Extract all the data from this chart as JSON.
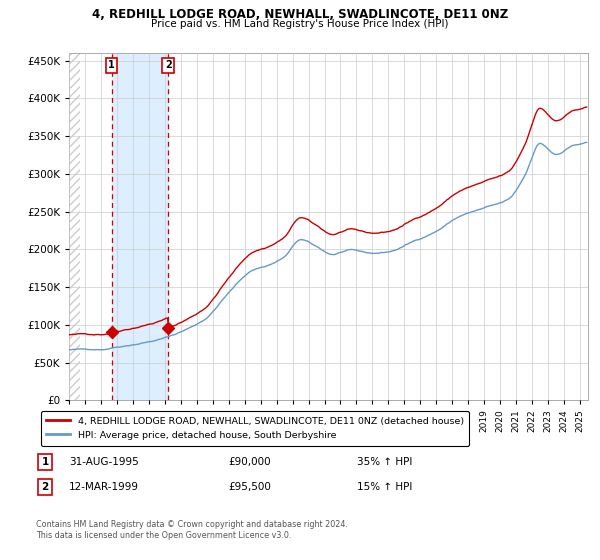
{
  "title_line1": "4, REDHILL LODGE ROAD, NEWHALL, SWADLINCOTE, DE11 0NZ",
  "title_line2": "Price paid vs. HM Land Registry's House Price Index (HPI)",
  "sale1_date_num": 1995.667,
  "sale1_price": 90000,
  "sale1_label": "1",
  "sale1_hpi": "35% ↑ HPI",
  "sale1_date_str": "31-AUG-1995",
  "sale2_date_num": 1999.208,
  "sale2_price": 95500,
  "sale2_label": "2",
  "sale2_hpi": "15% ↑ HPI",
  "sale2_date_str": "12-MAR-1999",
  "legend_line1": "4, REDHILL LODGE ROAD, NEWHALL, SWADLINCOTE, DE11 0NZ (detached house)",
  "legend_line2": "HPI: Average price, detached house, South Derbyshire",
  "footer": "Contains HM Land Registry data © Crown copyright and database right 2024.\nThis data is licensed under the Open Government Licence v3.0.",
  "sale_color": "#cc0000",
  "hpi_color": "#6699cc",
  "vline_color": "#cc0000",
  "shade_color": "#ddeeff",
  "grid_color": "#cccccc",
  "hatch_color": "#bbbbbb",
  "ylim_min": 0,
  "ylim_max": 460000,
  "xlim_min": 1993.0,
  "xlim_max": 2025.5,
  "yticks": [
    0,
    50000,
    100000,
    150000,
    200000,
    250000,
    300000,
    350000,
    400000,
    450000
  ],
  "xticks_start": 1993,
  "xticks_end": 2025
}
